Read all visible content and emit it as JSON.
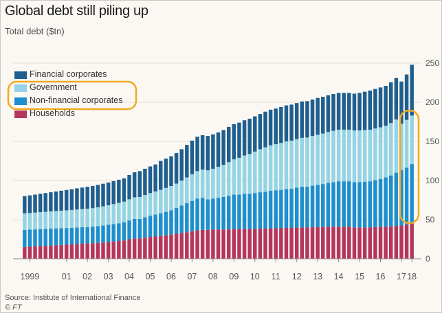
{
  "title": "Global debt still piling up",
  "subtitle": "Total debt ($tn)",
  "source": "Source: Institute of International Finance",
  "credit": "© FT",
  "colors": {
    "households": "#b5365c",
    "non_financial": "#1d8fcf",
    "government": "#94d4e6",
    "financial": "#1f5f8f",
    "highlight": "#f2a91c",
    "grid": "#e3ddd4",
    "axis_text": "#555555"
  },
  "legend": [
    {
      "key": "financial",
      "label": "Financial corporates"
    },
    {
      "key": "government",
      "label": "Government"
    },
    {
      "key": "non_financial",
      "label": "Non-financial corporates"
    },
    {
      "key": "households",
      "label": "Households"
    }
  ],
  "chart_data": {
    "type": "bar",
    "stacked": true,
    "title": "Global debt still piling up",
    "ylabel": "Total debt ($tn)",
    "ylim": [
      0,
      250
    ],
    "yticks": [
      0,
      50,
      100,
      150,
      200,
      250
    ],
    "y_axis_side": "right",
    "grid": true,
    "legend_position": "top-left",
    "x_tick_labels": [
      {
        "label": "1999",
        "bar": 1
      },
      {
        "label": "01",
        "bar": 8
      },
      {
        "label": "02",
        "bar": 12
      },
      {
        "label": "03",
        "bar": 16
      },
      {
        "label": "04",
        "bar": 20
      },
      {
        "label": "05",
        "bar": 24
      },
      {
        "label": "06",
        "bar": 28
      },
      {
        "label": "07",
        "bar": 32
      },
      {
        "label": "08",
        "bar": 36
      },
      {
        "label": "09",
        "bar": 40
      },
      {
        "label": "10",
        "bar": 44
      },
      {
        "label": "11",
        "bar": 48
      },
      {
        "label": "12",
        "bar": 52
      },
      {
        "label": "13",
        "bar": 56
      },
      {
        "label": "14",
        "bar": 60
      },
      {
        "label": "15",
        "bar": 64
      },
      {
        "label": "16",
        "bar": 68
      },
      {
        "label": "17",
        "bar": 72
      },
      {
        "label": "18",
        "bar": 74
      }
    ],
    "series": [
      {
        "name": "Households",
        "key": "households",
        "values": [
          15,
          15.4,
          15.8,
          16.2,
          16.5,
          16.9,
          17.3,
          17.7,
          18,
          18.4,
          18.8,
          19.2,
          19.6,
          20,
          20.4,
          20.8,
          21.4,
          22.1,
          22.8,
          23.5,
          25,
          26,
          26,
          27,
          28,
          28.5,
          29.1,
          30,
          31,
          32,
          33,
          34,
          35,
          36.5,
          37,
          37,
          37.5,
          37.5,
          37.5,
          37.5,
          38,
          38,
          38,
          38,
          38,
          38.5,
          38.5,
          39,
          39,
          39,
          39.5,
          39.5,
          40,
          40,
          40,
          40.5,
          40.5,
          40.5,
          41,
          41,
          41,
          41,
          41,
          40,
          40,
          40,
          40,
          40.5,
          41,
          41,
          41.5,
          42,
          42.5,
          43.5,
          45
        ]
      },
      {
        "name": "Non-financial corporates",
        "key": "non_financial",
        "values": [
          22,
          21.9,
          21.8,
          21.8,
          21.7,
          21.6,
          21.5,
          21.4,
          21.3,
          21.2,
          21.2,
          21.1,
          21,
          21.1,
          21.4,
          21.7,
          22,
          22.3,
          22.6,
          23,
          24,
          25,
          25,
          26,
          27,
          28,
          29.1,
          30,
          31,
          33,
          35,
          37,
          39,
          40.5,
          41,
          39,
          39.5,
          40.5,
          41.5,
          43,
          44,
          44,
          45,
          45,
          46,
          46.5,
          47,
          48,
          48.5,
          49,
          49.5,
          50,
          51,
          52,
          52,
          53,
          54,
          55,
          56,
          57,
          58,
          58,
          58,
          58,
          58,
          58.5,
          59,
          60,
          61,
          63,
          65,
          68,
          71,
          73,
          76
        ]
      },
      {
        "name": "Government",
        "key": "government",
        "values": [
          21,
          21.2,
          21.4,
          21.6,
          21.8,
          22,
          22.2,
          22.4,
          22.6,
          22.8,
          23,
          23.2,
          23.4,
          23.6,
          24,
          24.5,
          25,
          25.5,
          26,
          26.5,
          27,
          27.5,
          28,
          28.5,
          29,
          29.5,
          29.9,
          30.5,
          31,
          31,
          32,
          33,
          34,
          35,
          36,
          37,
          38,
          39.5,
          41,
          43,
          45,
          47,
          49,
          51,
          53,
          55,
          57,
          58,
          59,
          60,
          61,
          61.5,
          62,
          62.5,
          63,
          63.5,
          64,
          64.5,
          65,
          65.5,
          66,
          66,
          66,
          66,
          66,
          66,
          66,
          66,
          66,
          66,
          67,
          68,
          59,
          61,
          62
        ]
      },
      {
        "name": "Financial corporates",
        "key": "financial",
        "values": [
          22,
          22.5,
          23,
          23.5,
          24,
          24.5,
          25,
          25.5,
          26,
          26.5,
          27,
          27.5,
          28,
          28.4,
          28.6,
          28.9,
          29.1,
          29.3,
          29.6,
          29.8,
          31,
          32,
          33,
          33.5,
          34,
          34.5,
          36.9,
          37.5,
          38,
          39,
          40,
          41.5,
          43,
          44,
          44,
          44,
          44,
          44,
          44.5,
          45,
          45,
          45,
          45,
          45,
          45,
          45,
          45.5,
          45.5,
          45.5,
          46,
          46,
          46,
          46,
          46.5,
          46.5,
          46.5,
          47,
          47,
          47,
          47,
          47,
          47,
          47,
          47,
          48,
          49,
          50,
          50.5,
          51,
          51,
          52,
          53,
          54,
          58,
          65
        ]
      }
    ]
  }
}
